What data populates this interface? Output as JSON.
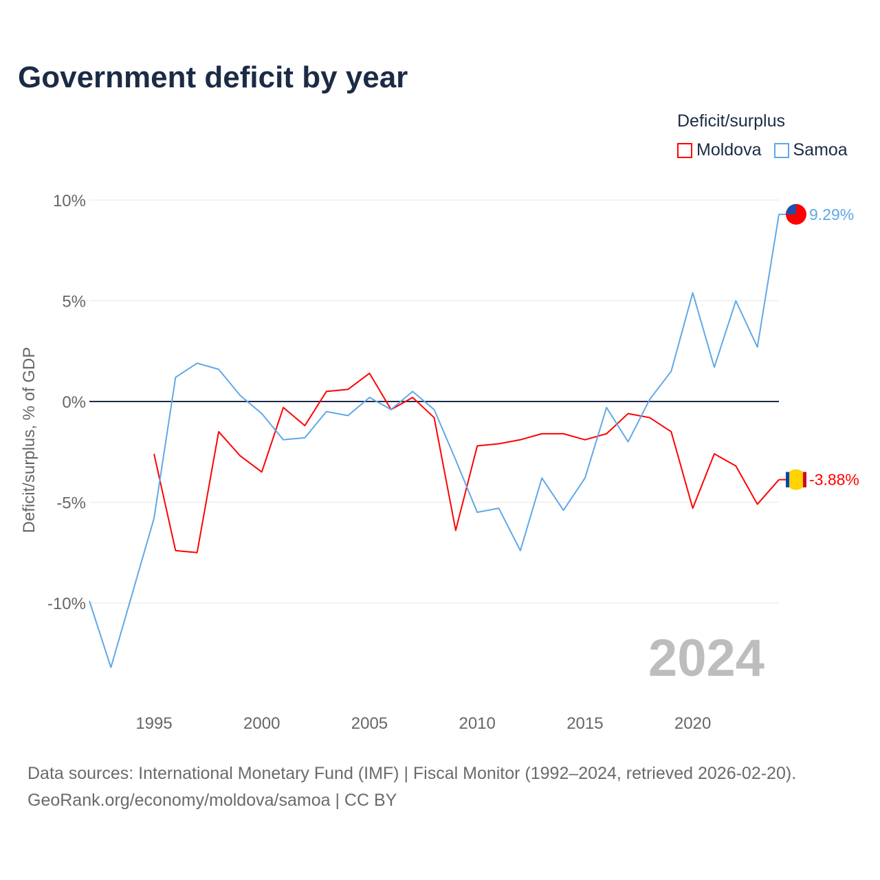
{
  "title": "Government deficit by year",
  "legend_title": "Deficit/surplus",
  "source_line1": "Data sources: International Monetary Fund (IMF) | Fiscal Monitor (1992–2024, retrieved 2026-02-20).",
  "source_line2": "GeoRank.org/economy/moldova/samoa | CC BY",
  "year_watermark": "2024",
  "chart_data": {
    "type": "line",
    "title": "Government deficit by year",
    "xlabel": "",
    "ylabel": "Deficit/surplus, % of GDP",
    "xlim": [
      1992,
      2024
    ],
    "ylim": [
      -13.8,
      10
    ],
    "yticks": [
      10,
      5,
      0,
      -5,
      -10
    ],
    "ytick_labels": [
      "10%",
      "5%",
      "0%",
      "-5%",
      "-10%"
    ],
    "xticks": [
      1995,
      2000,
      2005,
      2010,
      2015,
      2020
    ],
    "xtick_labels": [
      "1995",
      "2000",
      "2005",
      "2010",
      "2015",
      "2020"
    ],
    "grid": true,
    "legend_position": "top-right",
    "series": [
      {
        "name": "Moldova",
        "color": "#ff0000",
        "end_label": "-3.88%",
        "x": [
          1995,
          1996,
          1997,
          1998,
          1999,
          2000,
          2001,
          2002,
          2003,
          2004,
          2005,
          2006,
          2007,
          2008,
          2009,
          2010,
          2011,
          2012,
          2013,
          2014,
          2015,
          2016,
          2017,
          2018,
          2019,
          2020,
          2021,
          2022,
          2023,
          2024
        ],
        "values": [
          -2.6,
          -7.4,
          -7.5,
          -1.5,
          -2.7,
          -3.5,
          -0.3,
          -1.2,
          0.5,
          0.6,
          1.4,
          -0.4,
          0.2,
          -0.8,
          -6.4,
          -2.2,
          -2.1,
          -1.9,
          -1.6,
          -1.6,
          -1.9,
          -1.6,
          -0.6,
          -0.8,
          -1.5,
          -5.3,
          -2.6,
          -3.2,
          -5.1,
          -3.88
        ]
      },
      {
        "name": "Samoa",
        "color": "#5ea8e8",
        "end_label": "9.29%",
        "x": [
          1992,
          1993,
          1994,
          1995,
          1996,
          1997,
          1998,
          1999,
          2000,
          2001,
          2002,
          2003,
          2004,
          2005,
          2006,
          2007,
          2008,
          2009,
          2010,
          2011,
          2012,
          2013,
          2014,
          2015,
          2016,
          2017,
          2018,
          2019,
          2020,
          2021,
          2022,
          2023,
          2024
        ],
        "values": [
          -9.9,
          -13.2,
          -9.5,
          -5.8,
          1.2,
          1.9,
          1.6,
          0.3,
          -0.6,
          -1.9,
          -1.8,
          -0.5,
          -0.7,
          0.2,
          -0.4,
          0.5,
          -0.4,
          -2.9,
          -5.5,
          -5.3,
          -7.4,
          -3.8,
          -5.4,
          -3.8,
          -0.3,
          -2.0,
          0.1,
          1.5,
          5.4,
          1.7,
          5.0,
          2.7,
          9.29
        ]
      }
    ]
  }
}
